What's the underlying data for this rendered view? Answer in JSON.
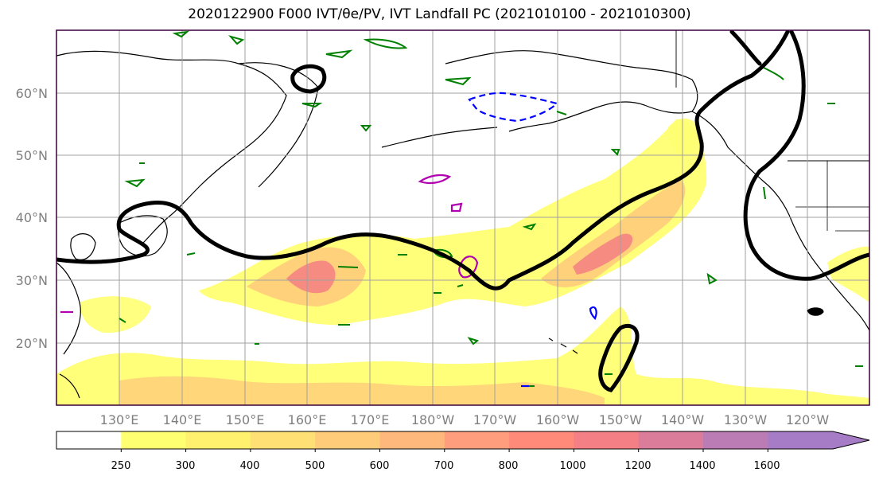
{
  "map": {
    "title": "2020122900 F000 IVT/θe/PV, IVT Landfall PC (2021010100 - 2021010300)",
    "lat_labels": [
      "60°N",
      "50°N",
      "40°N",
      "30°N",
      "20°N"
    ],
    "lon_labels": [
      "130°E",
      "140°E",
      "150°E",
      "160°E",
      "170°E",
      "180°W",
      "170°W",
      "160°W",
      "150°W",
      "140°W",
      "130°W",
      "120°W"
    ],
    "colors": {
      "coast": "#000000",
      "grid": "#a0a0a0",
      "pv_green": "#008000",
      "pv_blue": "#0000ff",
      "pv_magenta": "#b000b0",
      "theta_e": "#000000"
    }
  },
  "colorbar": {
    "levels": [
      "250",
      "300",
      "400",
      "500",
      "600",
      "700",
      "800",
      "1000",
      "1200",
      "1400",
      "1600"
    ],
    "colors": [
      "#ffffff",
      "#ffff72",
      "#fff06e",
      "#ffe074",
      "#ffcc7a",
      "#ffb87c",
      "#ff9d7c",
      "#ff8a7a",
      "#f47f84",
      "#da7c9a",
      "#bb7cb6",
      "#a77cc6"
    ]
  }
}
